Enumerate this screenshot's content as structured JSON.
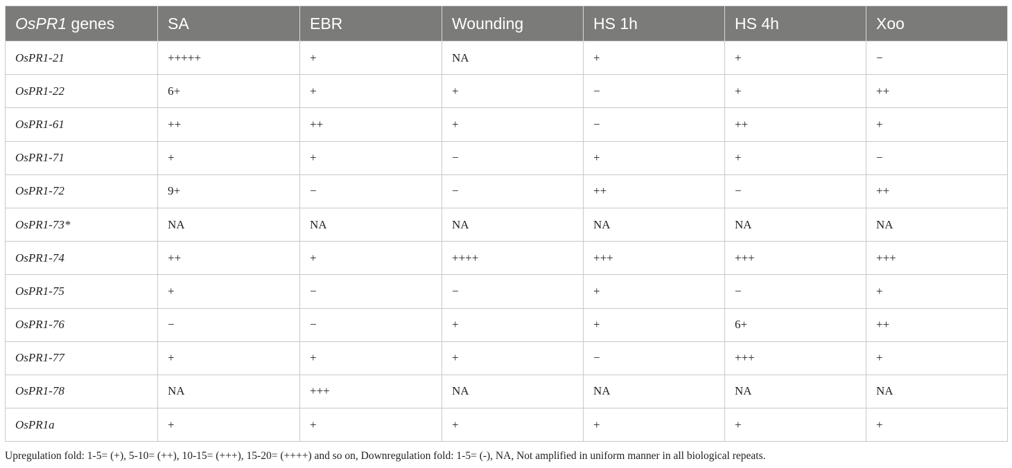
{
  "table": {
    "headers": {
      "gene_italic": "OsPR1",
      "gene_rest": " genes",
      "columns": [
        "SA",
        "EBR",
        "Wounding",
        "HS 1h",
        "HS 4h",
        "Xoo"
      ]
    },
    "rows": [
      {
        "gene": "OsPR1-21",
        "values": [
          "+++++",
          "+",
          "NA",
          "+",
          "+",
          "−"
        ]
      },
      {
        "gene": "OsPR1-22",
        "values": [
          "6+",
          "+",
          "+",
          "−",
          "+",
          "++"
        ]
      },
      {
        "gene": "OsPR1-61",
        "values": [
          "++",
          "++",
          "+",
          "−",
          "++",
          "+"
        ]
      },
      {
        "gene": "OsPR1-71",
        "values": [
          "+",
          "+",
          "−",
          "+",
          "+",
          "−"
        ]
      },
      {
        "gene": "OsPR1-72",
        "values": [
          "9+",
          "−",
          "−",
          "++",
          "−",
          "++"
        ]
      },
      {
        "gene": "OsPR1-73*",
        "values": [
          "NA",
          "NA",
          "NA",
          "NA",
          "NA",
          "NA"
        ]
      },
      {
        "gene": "OsPR1-74",
        "values": [
          "++",
          "+",
          "++++",
          "+++",
          "+++",
          "+++"
        ]
      },
      {
        "gene": "OsPR1-75",
        "values": [
          "+",
          "−",
          "−",
          "+",
          "−",
          "+"
        ]
      },
      {
        "gene": "OsPR1-76",
        "values": [
          "−",
          "−",
          "+",
          "+",
          "6+",
          "++"
        ]
      },
      {
        "gene": "OsPR1-77",
        "values": [
          "+",
          "+",
          "+",
          "−",
          "+++",
          "+"
        ]
      },
      {
        "gene": "OsPR1-78",
        "values": [
          "NA",
          "+++",
          "NA",
          "NA",
          "NA",
          "NA"
        ]
      },
      {
        "gene": "OsPR1a",
        "values": [
          "+",
          "+",
          "+",
          "+",
          "+",
          "+"
        ]
      }
    ]
  },
  "footnote": "Upregulation fold: 1-5= (+), 5-10= (++), 10-15= (+++), 15-20= (++++) and so on, Downregulation fold: 1-5= (-), NA, Not amplified in uniform manner in all biological repeats."
}
